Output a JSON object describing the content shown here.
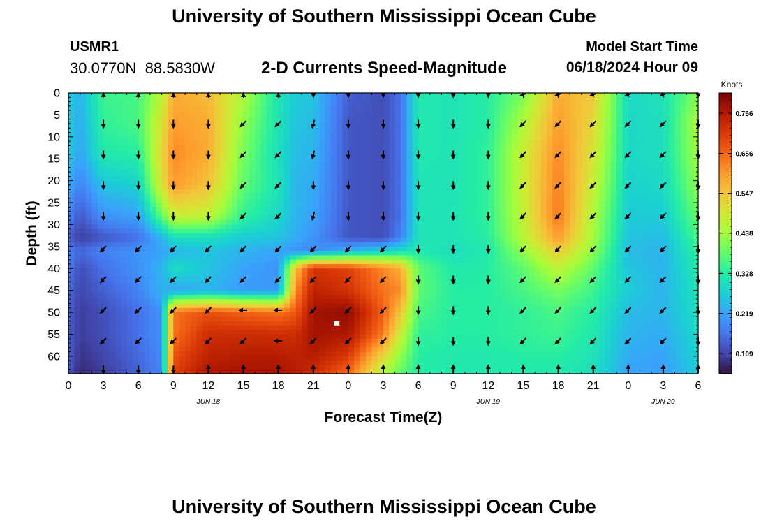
{
  "header": {
    "title": "University of Southern Mississippi Ocean Cube",
    "station_id": "USMR1",
    "station_coords": "30.0770N  88.5830W",
    "subtitle": "2-D Currents Speed-Magnitude",
    "model_start_label": "Model Start Time",
    "model_start_value": "06/18/2024 Hour 09"
  },
  "footer": {
    "title": "University of Southern Mississippi Ocean Cube"
  },
  "chart_data": {
    "type": "heatmap",
    "title": "2-D Currents Speed-Magnitude",
    "xlabel": "Forecast Time(Z)",
    "ylabel": "Depth (ft)",
    "xlim": [
      0,
      54
    ],
    "ylim": [
      0,
      64
    ],
    "y_inverted": true,
    "x_tick_labels": [
      "0",
      "3",
      "6",
      "9",
      "12",
      "15",
      "18",
      "21",
      "0",
      "3",
      "6",
      "9",
      "12",
      "15",
      "18",
      "21",
      "0",
      "3",
      "6"
    ],
    "y_tick_labels": [
      "0",
      "5",
      "10",
      "15",
      "20",
      "25",
      "30",
      "35",
      "40",
      "45",
      "50",
      "55",
      "60"
    ],
    "date_labels": [
      {
        "hour": 12,
        "text": "JUN 18"
      },
      {
        "hour": 36,
        "text": "JUN 19"
      },
      {
        "hour": 51,
        "text": "JUN 20"
      }
    ],
    "colorbar": {
      "label": "Knots",
      "min": 0.054,
      "max": 0.821,
      "tick_values": [
        0.109,
        0.219,
        0.328,
        0.438,
        0.547,
        0.656,
        0.766
      ],
      "tick_labels": [
        "0.109",
        "0.219",
        "0.328",
        "0.438",
        "0.547",
        "0.656",
        "0.766"
      ],
      "colors": [
        "#30123b",
        "#4145ab",
        "#4675ed",
        "#39a2fc",
        "#1bcfd4",
        "#24eca6",
        "#61fc6c",
        "#a4fc3b",
        "#d1e834",
        "#f3c63a",
        "#fe9b2d",
        "#f36315",
        "#d93806",
        "#b11901",
        "#7a0403"
      ]
    },
    "speed_anchor_hours": [
      0,
      1,
      3,
      6,
      8,
      9,
      12,
      15,
      18,
      19.5,
      21,
      24,
      27,
      28.5,
      30,
      33,
      36,
      39,
      42,
      45,
      48,
      51,
      54
    ],
    "speed_anchor_depths": [
      0,
      7,
      14,
      21,
      28,
      33,
      36,
      40,
      45,
      50,
      55,
      60,
      64
    ],
    "speed_grid_knots": [
      [
        0.27,
        0.24,
        0.35,
        0.36,
        0.46,
        0.58,
        0.56,
        0.45,
        0.31,
        0.27,
        0.26,
        0.14,
        0.12,
        0.16,
        0.32,
        0.31,
        0.33,
        0.4,
        0.58,
        0.54,
        0.29,
        0.31,
        0.41
      ],
      [
        0.27,
        0.23,
        0.34,
        0.36,
        0.5,
        0.6,
        0.58,
        0.42,
        0.31,
        0.26,
        0.25,
        0.13,
        0.12,
        0.16,
        0.32,
        0.31,
        0.33,
        0.45,
        0.6,
        0.52,
        0.29,
        0.3,
        0.45
      ],
      [
        0.27,
        0.22,
        0.32,
        0.33,
        0.52,
        0.62,
        0.58,
        0.4,
        0.3,
        0.25,
        0.24,
        0.13,
        0.12,
        0.16,
        0.32,
        0.31,
        0.34,
        0.48,
        0.62,
        0.5,
        0.29,
        0.3,
        0.44
      ],
      [
        0.23,
        0.18,
        0.26,
        0.28,
        0.5,
        0.6,
        0.55,
        0.38,
        0.31,
        0.24,
        0.23,
        0.13,
        0.12,
        0.16,
        0.31,
        0.31,
        0.34,
        0.48,
        0.63,
        0.48,
        0.28,
        0.29,
        0.42
      ],
      [
        0.18,
        0.13,
        0.2,
        0.22,
        0.38,
        0.48,
        0.47,
        0.34,
        0.29,
        0.24,
        0.22,
        0.13,
        0.12,
        0.16,
        0.31,
        0.31,
        0.34,
        0.47,
        0.64,
        0.45,
        0.27,
        0.27,
        0.39
      ],
      [
        0.14,
        0.1,
        0.13,
        0.16,
        0.24,
        0.3,
        0.3,
        0.27,
        0.26,
        0.23,
        0.2,
        0.13,
        0.12,
        0.18,
        0.31,
        0.31,
        0.33,
        0.46,
        0.6,
        0.44,
        0.26,
        0.25,
        0.36
      ],
      [
        0.18,
        0.15,
        0.18,
        0.2,
        0.22,
        0.24,
        0.26,
        0.24,
        0.22,
        0.2,
        0.19,
        0.24,
        0.28,
        0.3,
        0.32,
        0.3,
        0.32,
        0.42,
        0.54,
        0.42,
        0.25,
        0.24,
        0.34
      ],
      [
        0.17,
        0.12,
        0.16,
        0.2,
        0.24,
        0.3,
        0.26,
        0.22,
        0.2,
        0.56,
        0.72,
        0.7,
        0.62,
        0.58,
        0.38,
        0.32,
        0.33,
        0.38,
        0.47,
        0.38,
        0.26,
        0.24,
        0.32
      ],
      [
        0.15,
        0.11,
        0.14,
        0.18,
        0.24,
        0.22,
        0.24,
        0.21,
        0.21,
        0.62,
        0.75,
        0.72,
        0.64,
        0.62,
        0.38,
        0.33,
        0.33,
        0.36,
        0.4,
        0.35,
        0.27,
        0.24,
        0.31
      ],
      [
        0.14,
        0.1,
        0.12,
        0.16,
        0.2,
        0.64,
        0.68,
        0.66,
        0.64,
        0.67,
        0.78,
        0.8,
        0.66,
        0.55,
        0.36,
        0.33,
        0.33,
        0.34,
        0.36,
        0.33,
        0.25,
        0.24,
        0.3
      ],
      [
        0.14,
        0.1,
        0.12,
        0.16,
        0.2,
        0.64,
        0.73,
        0.73,
        0.73,
        0.73,
        0.78,
        0.77,
        0.63,
        0.48,
        0.34,
        0.33,
        0.33,
        0.34,
        0.35,
        0.32,
        0.24,
        0.23,
        0.29
      ],
      [
        0.14,
        0.09,
        0.11,
        0.15,
        0.19,
        0.68,
        0.75,
        0.76,
        0.76,
        0.75,
        0.76,
        0.71,
        0.52,
        0.42,
        0.33,
        0.32,
        0.32,
        0.33,
        0.33,
        0.31,
        0.23,
        0.22,
        0.28
      ],
      [
        0.13,
        0.08,
        0.1,
        0.14,
        0.18,
        0.7,
        0.77,
        0.78,
        0.78,
        0.76,
        0.73,
        0.65,
        0.45,
        0.38,
        0.33,
        0.32,
        0.32,
        0.32,
        0.32,
        0.3,
        0.22,
        0.21,
        0.27
      ]
    ],
    "arrow_hours": [
      3,
      6,
      9,
      12,
      15,
      18,
      21,
      24,
      27,
      30,
      33,
      36,
      39,
      42,
      45,
      48,
      51,
      54
    ],
    "arrow_depths": [
      0,
      7,
      14,
      21,
      28,
      35.5,
      42.5,
      49.5,
      56.5,
      63
    ],
    "arrow_direction_deg": [
      [
        90,
        90,
        90,
        90,
        90,
        90,
        270,
        270,
        270,
        270,
        270,
        270,
        225,
        225,
        225,
        225,
        225,
        270
      ],
      [
        270,
        270,
        270,
        270,
        225,
        225,
        255,
        270,
        270,
        270,
        270,
        270,
        225,
        225,
        225,
        225,
        225,
        270
      ],
      [
        270,
        270,
        270,
        270,
        225,
        225,
        255,
        270,
        270,
        270,
        270,
        270,
        225,
        225,
        225,
        225,
        225,
        270
      ],
      [
        270,
        270,
        270,
        270,
        225,
        225,
        270,
        270,
        270,
        270,
        270,
        270,
        225,
        225,
        225,
        225,
        225,
        270
      ],
      [
        270,
        270,
        270,
        270,
        225,
        225,
        255,
        270,
        270,
        270,
        270,
        270,
        225,
        225,
        225,
        225,
        225,
        270
      ],
      [
        225,
        225,
        225,
        225,
        225,
        225,
        225,
        225,
        225,
        270,
        270,
        270,
        225,
        225,
        225,
        225,
        225,
        270
      ],
      [
        225,
        225,
        225,
        225,
        225,
        225,
        225,
        225,
        225,
        270,
        270,
        270,
        225,
        225,
        225,
        225,
        225,
        270
      ],
      [
        225,
        225,
        225,
        225,
        180,
        180,
        225,
        225,
        225,
        270,
        270,
        270,
        225,
        225,
        225,
        225,
        225,
        270
      ],
      [
        225,
        225,
        225,
        225,
        225,
        180,
        225,
        225,
        225,
        270,
        270,
        270,
        225,
        225,
        225,
        225,
        225,
        270
      ],
      [
        270,
        270,
        270,
        90,
        90,
        90,
        90,
        90,
        90,
        90,
        90,
        90,
        90,
        90,
        90,
        90,
        90,
        90
      ]
    ],
    "marker": {
      "hour": 23,
      "depth": 52.5,
      "color": "#ffffff"
    }
  }
}
